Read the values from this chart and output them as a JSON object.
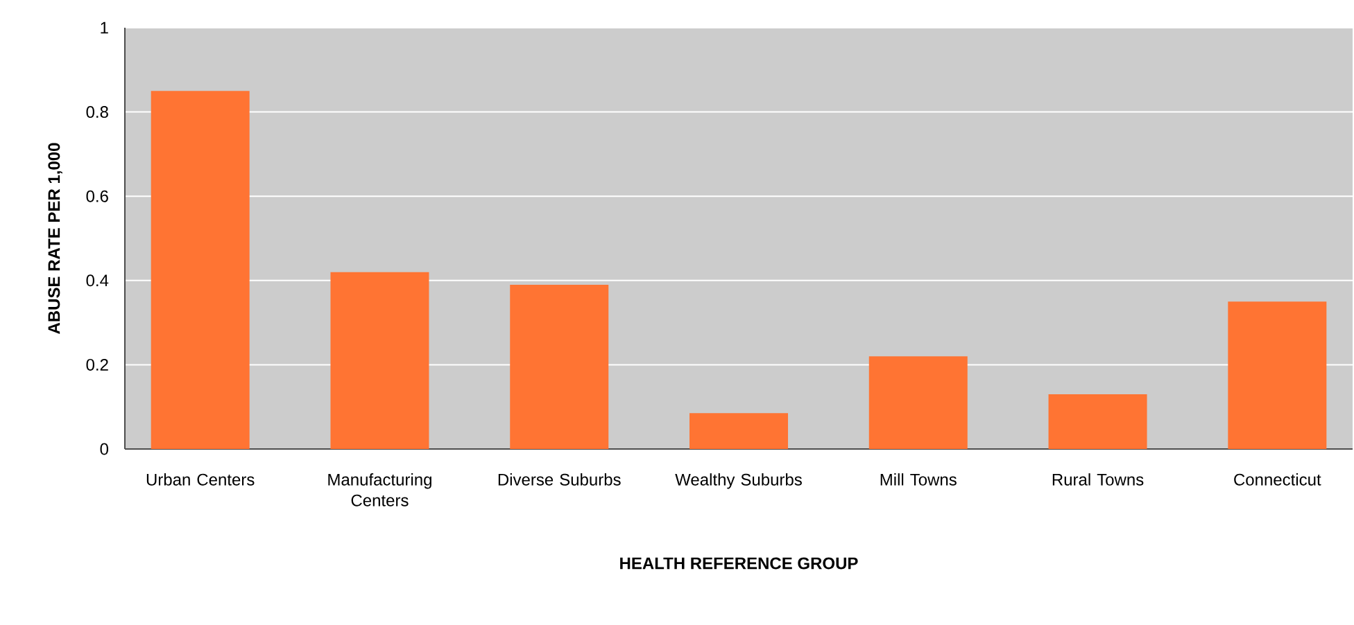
{
  "chart_data": {
    "type": "bar",
    "xlabel": "HEALTH REFERENCE GROUP",
    "ylabel": "ABUSE RATE PER 1,000",
    "categories": [
      "Urban Centers",
      "Manufacturing Centers",
      "Diverse Suburbs",
      "Wealthy Suburbs",
      "Mill Towns",
      "Rural Towns",
      "Connecticut"
    ],
    "values": [
      0.85,
      0.42,
      0.39,
      0.085,
      0.22,
      0.13,
      0.35
    ],
    "color": "#ff7433",
    "ylim": [
      0,
      1
    ],
    "yticks": [
      0,
      0.2,
      0.4,
      0.6,
      0.8,
      1
    ],
    "grid": "y"
  }
}
